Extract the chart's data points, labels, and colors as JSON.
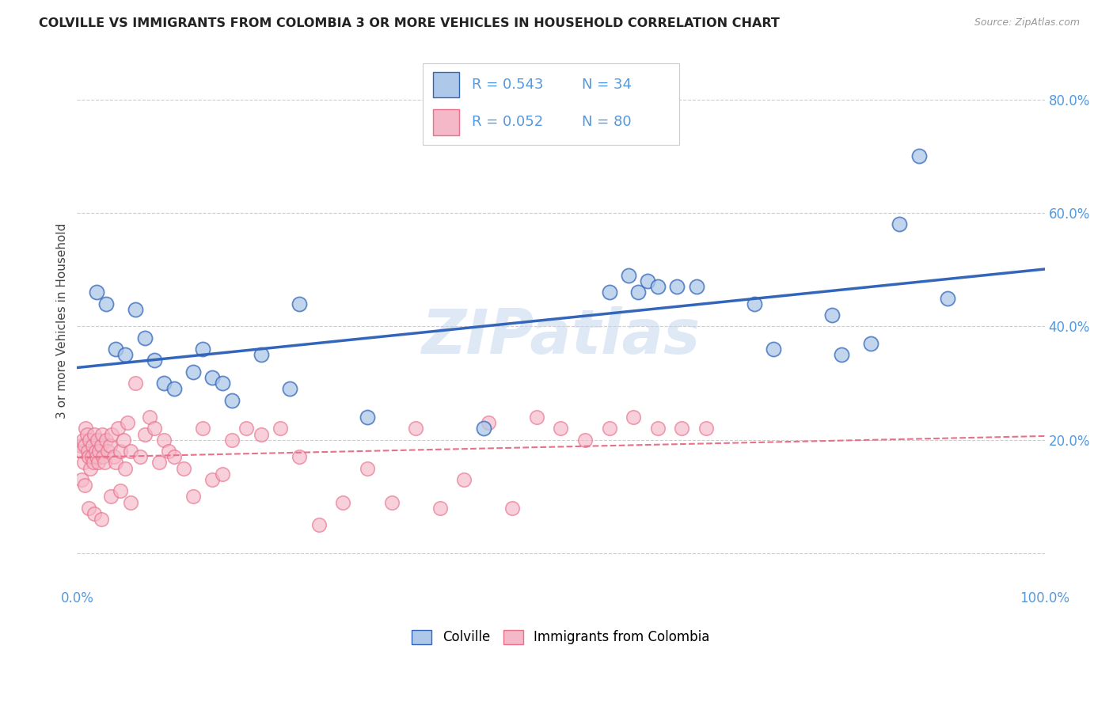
{
  "title": "COLVILLE VS IMMIGRANTS FROM COLOMBIA 3 OR MORE VEHICLES IN HOUSEHOLD CORRELATION CHART",
  "source": "Source: ZipAtlas.com",
  "ylabel": "3 or more Vehicles in Household",
  "xlim": [
    0.0,
    1.0
  ],
  "ylim": [
    -0.06,
    0.88
  ],
  "x_ticks": [
    0.0,
    0.2,
    0.4,
    0.6,
    0.8,
    1.0
  ],
  "x_tick_labels": [
    "0.0%",
    "",
    "",
    "",
    "",
    "100.0%"
  ],
  "y_ticks": [
    0.0,
    0.2,
    0.4,
    0.6,
    0.8
  ],
  "y_tick_labels": [
    "",
    "20.0%",
    "40.0%",
    "60.0%",
    "80.0%"
  ],
  "legend_labels": [
    "Colville",
    "Immigrants from Colombia"
  ],
  "blue_R": 0.543,
  "blue_N": 34,
  "pink_R": 0.052,
  "pink_N": 80,
  "blue_color": "#adc8e8",
  "pink_color": "#f5b8c8",
  "blue_line_color": "#3366bb",
  "pink_line_color": "#e8708a",
  "tick_color": "#5599dd",
  "watermark": "ZIPatlas",
  "blue_scatter_x": [
    0.02,
    0.03,
    0.04,
    0.05,
    0.06,
    0.07,
    0.08,
    0.09,
    0.1,
    0.12,
    0.13,
    0.14,
    0.15,
    0.16,
    0.19,
    0.22,
    0.23,
    0.3,
    0.42,
    0.55,
    0.57,
    0.58,
    0.59,
    0.6,
    0.62,
    0.64,
    0.7,
    0.72,
    0.78,
    0.79,
    0.82,
    0.85,
    0.87,
    0.9
  ],
  "blue_scatter_y": [
    0.46,
    0.44,
    0.36,
    0.35,
    0.43,
    0.38,
    0.34,
    0.3,
    0.29,
    0.32,
    0.36,
    0.31,
    0.3,
    0.27,
    0.35,
    0.29,
    0.44,
    0.24,
    0.22,
    0.46,
    0.49,
    0.46,
    0.48,
    0.47,
    0.47,
    0.47,
    0.44,
    0.36,
    0.42,
    0.35,
    0.37,
    0.58,
    0.7,
    0.45
  ],
  "pink_scatter_x": [
    0.004,
    0.005,
    0.006,
    0.007,
    0.008,
    0.009,
    0.01,
    0.011,
    0.012,
    0.013,
    0.014,
    0.015,
    0.016,
    0.017,
    0.018,
    0.019,
    0.02,
    0.021,
    0.022,
    0.023,
    0.025,
    0.026,
    0.027,
    0.028,
    0.03,
    0.032,
    0.034,
    0.036,
    0.038,
    0.04,
    0.042,
    0.045,
    0.048,
    0.05,
    0.052,
    0.055,
    0.06,
    0.065,
    0.07,
    0.075,
    0.08,
    0.085,
    0.09,
    0.095,
    0.1,
    0.11,
    0.12,
    0.13,
    0.14,
    0.15,
    0.16,
    0.175,
    0.19,
    0.21,
    0.23,
    0.25,
    0.275,
    0.3,
    0.325,
    0.35,
    0.375,
    0.4,
    0.425,
    0.45,
    0.475,
    0.5,
    0.525,
    0.55,
    0.575,
    0.6,
    0.625,
    0.65,
    0.005,
    0.008,
    0.012,
    0.018,
    0.025,
    0.035,
    0.045,
    0.055
  ],
  "pink_scatter_y": [
    0.19,
    0.18,
    0.2,
    0.16,
    0.19,
    0.22,
    0.21,
    0.18,
    0.17,
    0.2,
    0.15,
    0.17,
    0.19,
    0.16,
    0.21,
    0.18,
    0.17,
    0.2,
    0.16,
    0.18,
    0.19,
    0.21,
    0.17,
    0.16,
    0.2,
    0.18,
    0.19,
    0.21,
    0.17,
    0.16,
    0.22,
    0.18,
    0.2,
    0.15,
    0.23,
    0.18,
    0.3,
    0.17,
    0.21,
    0.24,
    0.22,
    0.16,
    0.2,
    0.18,
    0.17,
    0.15,
    0.1,
    0.22,
    0.13,
    0.14,
    0.2,
    0.22,
    0.21,
    0.22,
    0.17,
    0.05,
    0.09,
    0.15,
    0.09,
    0.22,
    0.08,
    0.13,
    0.23,
    0.08,
    0.24,
    0.22,
    0.2,
    0.22,
    0.24,
    0.22,
    0.22,
    0.22,
    0.13,
    0.12,
    0.08,
    0.07,
    0.06,
    0.1,
    0.11,
    0.09
  ]
}
